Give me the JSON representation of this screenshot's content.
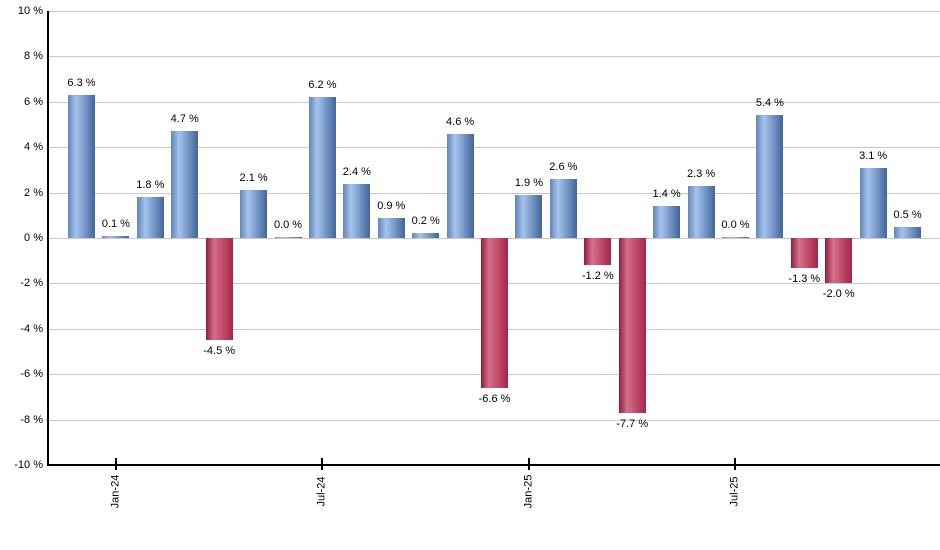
{
  "chart_data": {
    "type": "bar",
    "title": "",
    "xlabel": "",
    "ylabel": "",
    "ylim": [
      -10,
      10
    ],
    "ytick_step": 2,
    "grid": "horizontal",
    "legend_position": "none",
    "ytick_labels": [
      "10 %",
      "8 %",
      "6 %",
      "4 %",
      "2 %",
      "0 %",
      "-2 %",
      "-4 %",
      "-6 %",
      "-8 %",
      "-10 %"
    ],
    "values": [
      6.3,
      0.1,
      1.8,
      4.7,
      -4.5,
      2.1,
      0.0,
      6.2,
      2.4,
      0.9,
      0.2,
      4.6,
      -6.6,
      1.9,
      2.6,
      -1.2,
      -7.7,
      1.4,
      2.3,
      0.0,
      5.4,
      -1.3,
      -2.0,
      3.1,
      0.5
    ],
    "bar_labels": [
      "6.3 %",
      "0.1 %",
      "1.8 %",
      "4.7 %",
      "-4.5 %",
      "2.1 %",
      "0.0 %",
      "6.2 %",
      "2.4 %",
      "0.9 %",
      "0.2 %",
      "4.6 %",
      "-6.6 %",
      "1.9 %",
      "2.6 %",
      "-1.2 %",
      "-7.7 %",
      "1.4 %",
      "2.3 %",
      "0.0 %",
      "5.4 %",
      "-1.3 %",
      "-2.0 %",
      "3.1 %",
      "0.5 %"
    ],
    "xticks": [
      {
        "bar_index": 1,
        "label": "Jan-24"
      },
      {
        "bar_index": 7,
        "label": "Jul-24"
      },
      {
        "bar_index": 13,
        "label": "Jan-25"
      },
      {
        "bar_index": 19,
        "label": "Jul-25"
      }
    ],
    "colors": {
      "positive_bar_edge_left": "#6385b6",
      "positive_bar_highlight": "#a4c4ee",
      "positive_bar_edge_right": "#42649b",
      "negative_bar_edge_left": "#8f1d3e",
      "negative_bar_highlight": "#d4708c",
      "negative_bar_edge_right": "#a62549",
      "gridline": "#c9c9c9",
      "axis": "#000000",
      "label_text": "#000000",
      "background": "#ffffff"
    }
  }
}
